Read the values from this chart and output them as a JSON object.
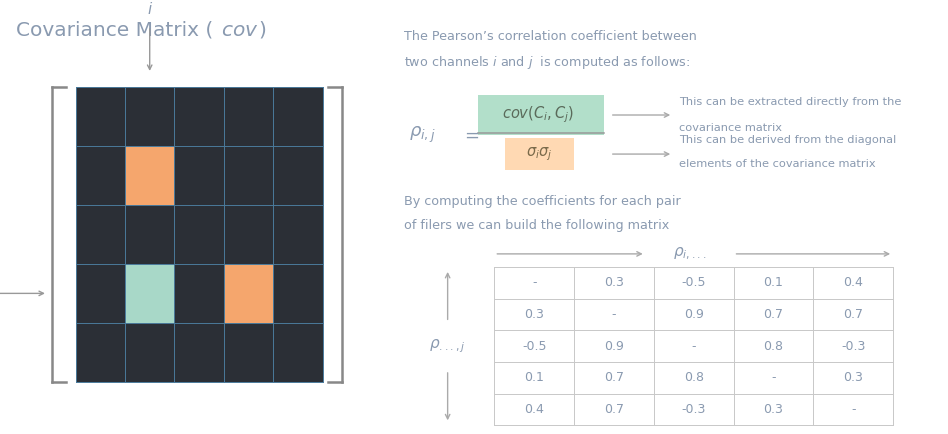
{
  "bg_color": "#ffffff",
  "matrix_bg": "#2b2f36",
  "matrix_grid_color": "#4a7a9b",
  "orange_color": "#f5a66d",
  "teal_color": "#a8d8c8",
  "text_color": "#8a9ab0",
  "bracket_color": "#888888",
  "arrow_color": "#999999",
  "orange_cells": [
    [
      1,
      1
    ],
    [
      3,
      3
    ]
  ],
  "teal_cells": [
    [
      3,
      1
    ]
  ],
  "table_data": [
    [
      "-",
      "0.3",
      "-0.5",
      "0.1",
      "0.4"
    ],
    [
      "0.3",
      "-",
      "0.9",
      "0.7",
      "0.7"
    ],
    [
      "-0.5",
      "0.9",
      "-",
      "0.8",
      "-0.3"
    ],
    [
      "0.1",
      "0.7",
      "0.8",
      "-",
      "0.3"
    ],
    [
      "0.4",
      "0.7",
      "-0.3",
      "0.3",
      "-"
    ]
  ],
  "green_highlight": "#b2dfca",
  "orange_highlight": "#ffd9b3"
}
